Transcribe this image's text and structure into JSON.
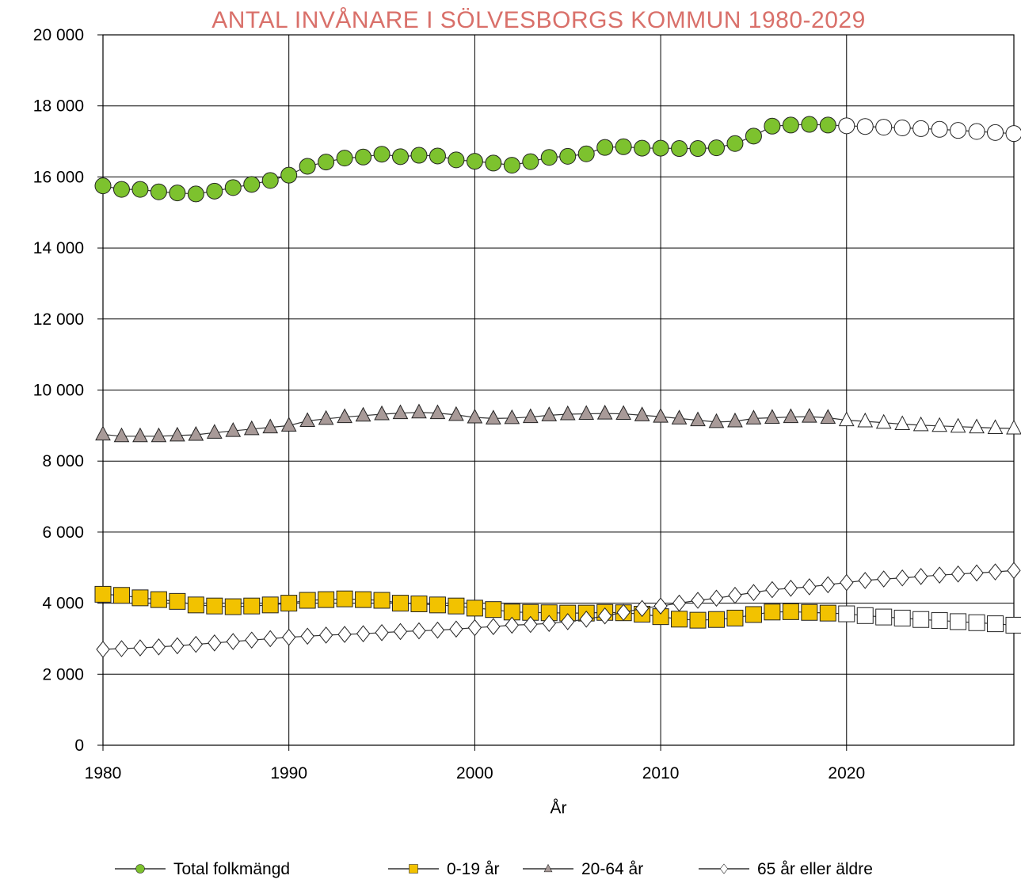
{
  "chart_data": {
    "type": "line",
    "title": "ANTAL INVÅNARE I SÖLVESBORGS KOMMUN 1980-2029",
    "xlabel": "År",
    "ylabel": "",
    "xlim": [
      1980,
      2029
    ],
    "ylim": [
      0,
      20000
    ],
    "x_ticks": [
      "1980",
      "1990",
      "2000",
      "2010",
      "2020"
    ],
    "y_ticks": [
      "0",
      "2 000",
      "4 000",
      "6 000",
      "8 000",
      "10 000",
      "12 000",
      "14 000",
      "16 000",
      "18 000",
      "20 000"
    ],
    "grid": true,
    "legend_position": "bottom",
    "forecast_from": 2020,
    "x": [
      1980,
      1981,
      1982,
      1983,
      1984,
      1985,
      1986,
      1987,
      1988,
      1989,
      1990,
      1991,
      1992,
      1993,
      1994,
      1995,
      1996,
      1997,
      1998,
      1999,
      2000,
      2001,
      2002,
      2003,
      2004,
      2005,
      2006,
      2007,
      2008,
      2009,
      2010,
      2011,
      2012,
      2013,
      2014,
      2015,
      2016,
      2017,
      2018,
      2019,
      2020,
      2021,
      2022,
      2023,
      2024,
      2025,
      2026,
      2027,
      2028,
      2029
    ],
    "series": [
      {
        "name": "Total folkmängd",
        "marker": "circle",
        "color": "#7dc22e",
        "values": [
          15750,
          15650,
          15650,
          15580,
          15550,
          15520,
          15600,
          15700,
          15790,
          15900,
          16050,
          16300,
          16420,
          16530,
          16560,
          16640,
          16570,
          16610,
          16590,
          16480,
          16440,
          16390,
          16330,
          16430,
          16550,
          16580,
          16650,
          16830,
          16850,
          16810,
          16810,
          16800,
          16800,
          16820,
          16940,
          17150,
          17430,
          17460,
          17480,
          17460,
          17440,
          17420,
          17400,
          17380,
          17360,
          17340,
          17310,
          17280,
          17250,
          17220
        ]
      },
      {
        "name": "0-19 år",
        "marker": "square",
        "color": "#f2c200",
        "values": [
          4250,
          4220,
          4150,
          4100,
          4050,
          3950,
          3920,
          3900,
          3920,
          3950,
          4000,
          4080,
          4100,
          4120,
          4100,
          4080,
          4000,
          3980,
          3950,
          3920,
          3860,
          3820,
          3750,
          3740,
          3730,
          3720,
          3720,
          3740,
          3730,
          3690,
          3620,
          3550,
          3520,
          3540,
          3580,
          3680,
          3750,
          3760,
          3740,
          3720,
          3700,
          3650,
          3610,
          3580,
          3540,
          3510,
          3480,
          3450,
          3420,
          3380
        ]
      },
      {
        "name": "20-64 år",
        "marker": "triangle",
        "color": "#a89a98",
        "values": [
          8750,
          8700,
          8700,
          8700,
          8720,
          8740,
          8800,
          8850,
          8900,
          8950,
          9000,
          9130,
          9190,
          9240,
          9280,
          9320,
          9350,
          9370,
          9350,
          9300,
          9230,
          9200,
          9210,
          9240,
          9290,
          9320,
          9330,
          9340,
          9330,
          9290,
          9250,
          9200,
          9150,
          9100,
          9120,
          9200,
          9220,
          9240,
          9250,
          9220,
          9150,
          9120,
          9080,
          9040,
          9010,
          8990,
          8970,
          8950,
          8930,
          8920
        ]
      },
      {
        "name": "65 år eller äldre",
        "marker": "diamond",
        "color": "#ffffff",
        "values": [
          2700,
          2720,
          2740,
          2770,
          2800,
          2840,
          2880,
          2920,
          2960,
          3000,
          3040,
          3070,
          3100,
          3120,
          3140,
          3170,
          3200,
          3220,
          3240,
          3270,
          3310,
          3340,
          3380,
          3400,
          3430,
          3480,
          3550,
          3640,
          3740,
          3850,
          3920,
          4000,
          4080,
          4140,
          4220,
          4300,
          4380,
          4420,
          4460,
          4520,
          4580,
          4640,
          4680,
          4710,
          4750,
          4790,
          4820,
          4850,
          4880,
          4920
        ]
      }
    ]
  }
}
